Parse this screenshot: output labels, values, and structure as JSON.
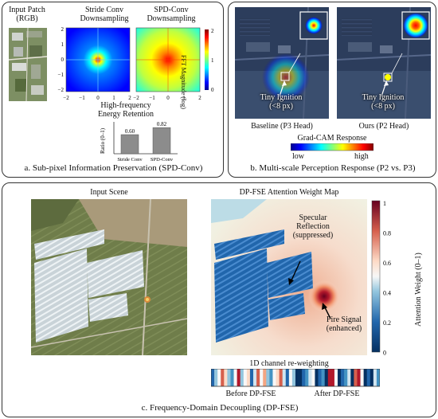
{
  "panel_a": {
    "input_title": "Input Patch\n(RGB)",
    "stride_title": "Stride Conv\nDownsampling",
    "spd_title": "SPD-Conv\nDownsampling",
    "colorbar_label": "FFT Magnitude (log)",
    "colorbar_ticks": [
      "2",
      "1",
      "0"
    ],
    "axis_ticks_left": [
      "2",
      "1",
      "0",
      "−1",
      "−2"
    ],
    "axis_ticks_bottom": [
      "−2",
      "−1",
      "0",
      "1",
      "2"
    ],
    "energy_title": "High-frequency\nEnergy Retention",
    "caption": "a. Sub-pixel Information Preservation (SPD-Conv)"
  },
  "panel_b": {
    "ignition_label_1": "Tiny Ignition\n(<8 px)",
    "ignition_label_2": "Tiny Ignition\n(<8 px)",
    "baseline_label": "Baseline (P3 Head)",
    "ours_label": "Ours (P2 Head)",
    "gradcam_title": "Grad-CAM Response",
    "gradcam_low": "low",
    "gradcam_high": "high",
    "caption": "b. Multi-scale Perception Response (P2 vs. P3)"
  },
  "panel_c": {
    "input_scene": "Input Scene",
    "map_title": "DP-FSE Attention Weight Map",
    "specular": "Specular\nReflection\n(suppressed)",
    "fire": "Fire Signal\n(enhanced)",
    "colorbar_label": "Attention Weight (0–1)",
    "colorbar_ticks": [
      "1",
      "0.8",
      "0.6",
      "0.4",
      "0.2",
      "0"
    ],
    "channel_title": "1D channel re-weighting",
    "before": "Before DP-FSE",
    "after": "After DP-FSE",
    "caption": "c. Frequency-Domain Decoupling (DP-FSE)"
  },
  "chart_data": {
    "type": "bar",
    "title": "High-frequency\nEnergy Retention",
    "categories": [
      "Stride Conv",
      "SPD-Conv"
    ],
    "values": [
      0.6,
      0.82
    ],
    "value_labels": [
      "0.60",
      "0.82"
    ],
    "xlabel": "",
    "ylabel": "Ratio (0–1)",
    "ylim": [
      0,
      1
    ],
    "bar_color": "#8c8c8c"
  }
}
